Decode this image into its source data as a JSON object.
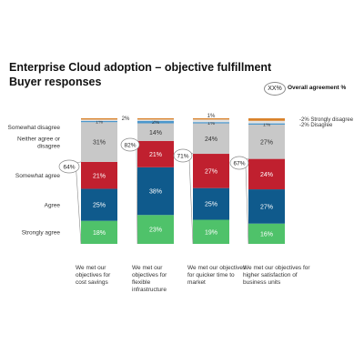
{
  "header": {
    "title": "Enterprise Cloud adoption – objective fulfillment",
    "subtitle": "Buyer responses"
  },
  "legend": {
    "chip": "XX%",
    "label": "Overall agreement %"
  },
  "chart_data": {
    "type": "bar",
    "stacked": true,
    "categories": [
      "We met our objectives for cost savings",
      "We met our objectives for flexible infrastructure",
      "We met our objectives for quicker time to market",
      "We met our objectives for higher satisfaction of business units"
    ],
    "category_lines": [
      [
        "We met our",
        "objectives for",
        "cost savings"
      ],
      [
        "We met our",
        "objectives for",
        "flexible",
        "infrastructure"
      ],
      [
        "We met our objectives",
        "for quicker time to",
        "market"
      ],
      [
        "We met our objectives for",
        "higher satisfaction of",
        "business units"
      ]
    ],
    "series": [
      {
        "name": "Strongly agree",
        "color": "#4fc26a",
        "values": [
          18,
          23,
          19,
          16
        ],
        "labels": [
          "18%",
          "23%",
          "19%",
          "16%"
        ]
      },
      {
        "name": "Agree",
        "color": "#0f5a8c",
        "values": [
          25,
          38,
          25,
          27
        ],
        "labels": [
          "25%",
          "38%",
          "25%",
          "27%"
        ]
      },
      {
        "name": "Somewhat agree",
        "color": "#c0202f",
        "values": [
          21,
          21,
          27,
          24
        ],
        "labels": [
          "21%",
          "21%",
          "27%",
          "24%"
        ]
      },
      {
        "name": "Neither agree or disagree",
        "color": "#c8c8c8",
        "values": [
          31,
          14,
          24,
          27
        ],
        "labels": [
          "31%",
          "14%",
          "24%",
          "27%"
        ]
      },
      {
        "name": "Somewhat disagree",
        "color": "#4b97cc",
        "values": [
          1,
          2,
          1,
          1
        ],
        "labels": [
          "1%",
          "2%",
          "1%",
          "1%"
        ]
      },
      {
        "name": "Disagree",
        "color": "#e2e2e2",
        "values": [
          1,
          1,
          2,
          2
        ],
        "labels": [
          "",
          "",
          "",
          ""
        ]
      },
      {
        "name": "Strongly disagree",
        "color": "#d9822b",
        "values": [
          1,
          1,
          1,
          2
        ],
        "labels": [
          "",
          "",
          "",
          ""
        ]
      }
    ],
    "overall_agreement": [
      "64%",
      "82%",
      "71%",
      "67%"
    ],
    "row_labels": [
      {
        "series": "Somewhat disagree",
        "lines": [
          "Somewhat disagree"
        ]
      },
      {
        "series": "Neither agree or disagree",
        "lines": [
          "Neither agree or",
          "disagree"
        ]
      },
      {
        "series": "Somewhat agree",
        "lines": [
          "Somewhat agree"
        ]
      },
      {
        "series": "Agree",
        "lines": [
          "Agree"
        ]
      },
      {
        "series": "Strongly agree",
        "lines": [
          "Strongly agree"
        ]
      }
    ],
    "side_notes": [
      "-2% Strongly disagree",
      "-2% Disagree"
    ],
    "top_notes": [
      "2%",
      "1%"
    ],
    "ylim": [
      0,
      100
    ],
    "legend_position": "top-right"
  }
}
